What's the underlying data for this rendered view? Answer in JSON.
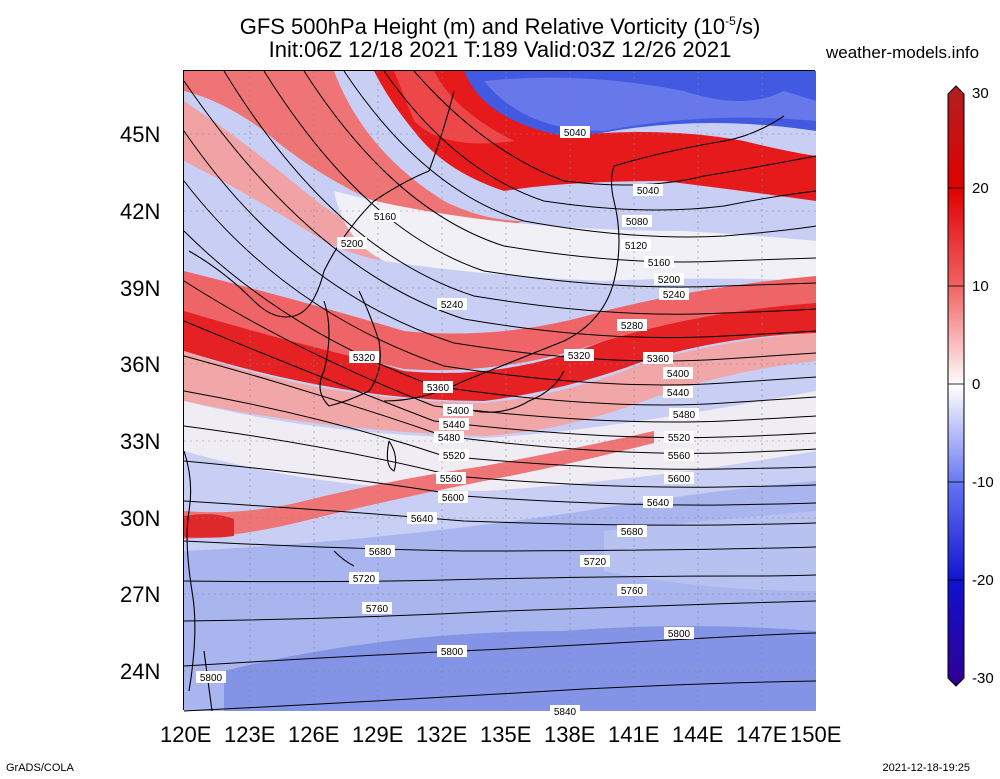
{
  "title": {
    "line1_pre": "GFS 500hPa Height (m) and Relative Vorticity (10",
    "line1_sup": "-5",
    "line1_post": "/s)",
    "line2": "Init:06Z 12/18 2021 T:189 Valid:03Z 12/26 2021"
  },
  "site": "weather-models.info",
  "footer_left": "GrADS/COLA",
  "footer_right": "2021-12-18-19:25",
  "lat_labels": [
    "45N",
    "42N",
    "39N",
    "36N",
    "33N",
    "30N",
    "27N",
    "24N"
  ],
  "lon_labels": [
    "120E",
    "123E",
    "126E",
    "129E",
    "132E",
    "135E",
    "138E",
    "141E",
    "144E",
    "147E",
    "150E"
  ],
  "colorbar": {
    "ticks": [
      "30",
      "20",
      "10",
      "0",
      "-10",
      "-20",
      "-30"
    ],
    "colors": [
      "#b02020",
      "#e00000",
      "#f06060",
      "#ffffff",
      "#6070f0",
      "#1010d0",
      "#300090"
    ]
  },
  "contour_labels": [
    "5040",
    "5040",
    "5080",
    "5120",
    "5160",
    "5160",
    "5200",
    "5200",
    "5240",
    "5240",
    "5280",
    "5320",
    "5320",
    "5360",
    "5360",
    "5400",
    "5400",
    "5440",
    "5440",
    "5480",
    "5480",
    "5520",
    "5520",
    "5560",
    "5560",
    "5600",
    "5600",
    "5640",
    "5640",
    "5680",
    "5680",
    "5720",
    "5720",
    "5760",
    "5760",
    "5800",
    "5800",
    "5800",
    "5840"
  ]
}
